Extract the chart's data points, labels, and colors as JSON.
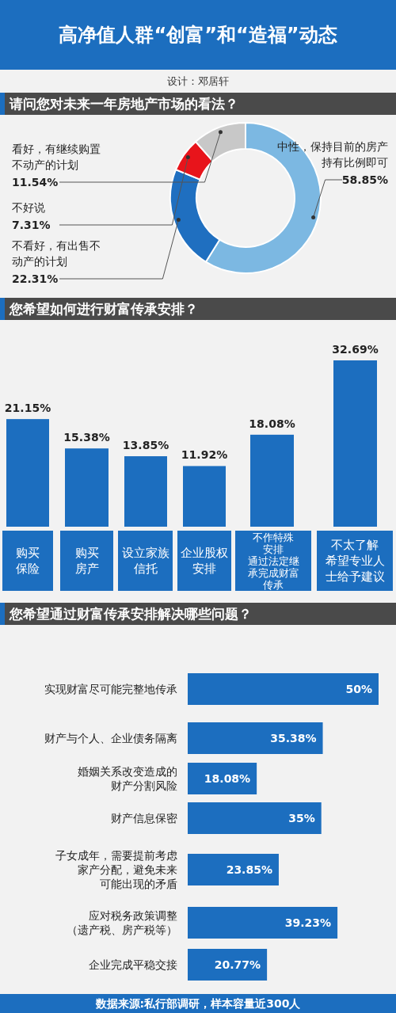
{
  "chart_data": [
    {
      "type": "other",
      "title": "高净值人群“创富”和“造福”动态",
      "subtitle": "设计：邓居轩"
    },
    {
      "type": "donut",
      "title": "请问您对未来一年房地产市场的看法？",
      "categories": [
        "中性，保持目前的房产持有比例即可",
        "不看好，有出售不动产的计划",
        "不好说",
        "看好，有继续购置不动产的计划"
      ],
      "values": [
        58.85,
        22.31,
        7.31,
        11.54
      ],
      "colors": [
        "#7cb8e2",
        "#1f6fc0",
        "#e8141b",
        "#c8c8c8"
      ],
      "value_labels": [
        "58.85%",
        "22.31%",
        "7.31%",
        "11.54%"
      ]
    },
    {
      "type": "bar",
      "title": "您希望如何进行财富传承安排？",
      "categories": [
        "购买保险",
        "购买房产",
        "设立家族信托",
        "企业股权安排",
        "不作特殊安排通过法定继承完成财富传承",
        "不太了解希望专业人士给予建议"
      ],
      "values": [
        21.15,
        15.38,
        13.85,
        11.92,
        18.08,
        32.69
      ],
      "color": "#1c6ebf",
      "value_labels": [
        "21.15%",
        "15.38%",
        "13.85%",
        "11.92%",
        "18.08%",
        "32.69%"
      ]
    },
    {
      "type": "bar",
      "orientation": "horizontal",
      "title": "您希望通过财富传承安排解决哪些问题？",
      "categories": [
        "实现财富尽可能完整地传承",
        "财产与个人、企业债务隔离",
        "婚姻关系改变造成的财产分割风险",
        "财产信息保密",
        "子女成年，需要提前考虑家产分配，避免未来可能出现的矛盾",
        "应对税务政策调整（遗产税、房产税等）",
        "企业完成平稳交接"
      ],
      "values": [
        50,
        35.38,
        18.08,
        35,
        23.85,
        39.23,
        20.77
      ],
      "color": "#1c6ebf",
      "value_labels": [
        "50%",
        "35.38%",
        "18.08%",
        "35%",
        "23.85%",
        "39.23%",
        "20.77%"
      ],
      "annotations": [
        "数据来源:私行部调研，样本容量近300人"
      ]
    }
  ]
}
